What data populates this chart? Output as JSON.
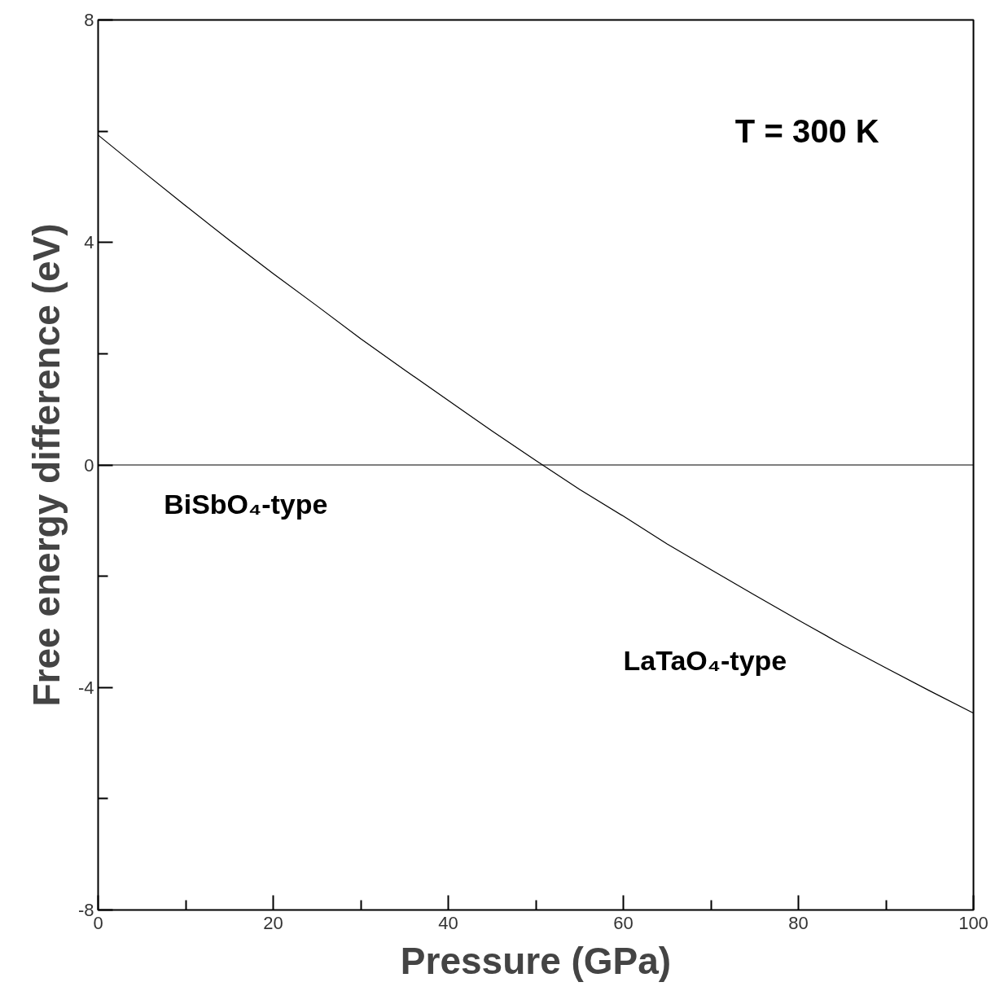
{
  "chart_data": {
    "type": "line",
    "xlabel": "Pressure (GPa)",
    "ylabel": "Free energy difference (eV)",
    "x": [
      0,
      5,
      10,
      15,
      20,
      25,
      30,
      35,
      40,
      45,
      50,
      55,
      60,
      65,
      70,
      75,
      80,
      85,
      90,
      95,
      100
    ],
    "series": [
      {
        "color": "#000000",
        "values": [
          5.93,
          5.29,
          4.66,
          4.04,
          3.44,
          2.86,
          2.27,
          1.71,
          1.16,
          0.61,
          0.08,
          -0.44,
          -0.92,
          -1.42,
          -1.88,
          -2.34,
          -2.79,
          -3.23,
          -3.65,
          -4.06,
          -4.46
        ]
      }
    ],
    "xlim": [
      0,
      100
    ],
    "ylim": [
      -8,
      8
    ],
    "xticks": [
      0,
      {
        "value": 10,
        "label": null
      },
      20,
      {
        "value": 30,
        "label": null
      },
      40,
      {
        "value": 50,
        "label": null
      },
      60,
      {
        "value": 70,
        "label": null
      },
      80,
      {
        "value": 90,
        "label": null
      },
      100
    ],
    "yticks": [
      -8,
      {
        "value": -6,
        "label": null
      },
      -4,
      {
        "value": -2,
        "label": null
      },
      0,
      {
        "value": 2,
        "label": null
      },
      4,
      {
        "value": 6,
        "label": null
      },
      8
    ],
    "ref_lines": [
      {
        "axis": "y",
        "value": 0,
        "color": "#000000"
      }
    ],
    "annotations": [
      "T = 300 K",
      "BiSbO₄-type",
      "LaTaO₄-type"
    ],
    "grid": false,
    "marker": "none",
    "line_style": "solid"
  }
}
